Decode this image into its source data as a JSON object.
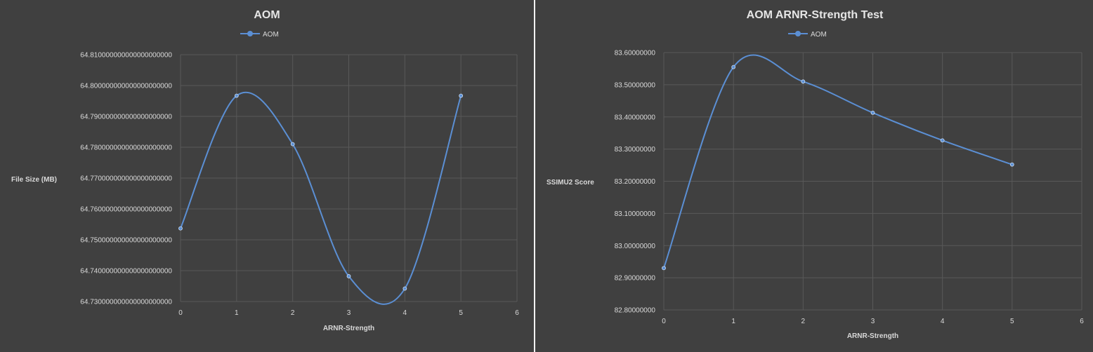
{
  "chart_data": [
    {
      "type": "line",
      "title": "AOM",
      "xlabel": "ARNR-Strength",
      "ylabel": "File Size (MB)",
      "xlim": [
        0,
        6
      ],
      "xticks": [
        "0",
        "1",
        "2",
        "3",
        "4",
        "5",
        "6"
      ],
      "ylim": [
        64.73,
        64.81
      ],
      "yticks": [
        "64.730000000000000000000",
        "64.740000000000000000000",
        "64.750000000000000000000",
        "64.760000000000000000000",
        "64.770000000000000000000",
        "64.780000000000000000000",
        "64.790000000000000000000",
        "64.800000000000000000000",
        "64.810000000000000000000"
      ],
      "grid": true,
      "legend_position": "top",
      "series": [
        {
          "name": "AOM",
          "color": "#5b8fd4",
          "x": [
            0,
            1,
            2,
            3,
            4,
            5
          ],
          "y": [
            64.7537,
            64.7967,
            64.781,
            64.7382,
            64.7342,
            64.7967
          ]
        }
      ]
    },
    {
      "type": "line",
      "title": "AOM ARNR-Strength Test",
      "xlabel": "ARNR-Strength",
      "ylabel": "SSIMU2 Score",
      "xlim": [
        0,
        6
      ],
      "xticks": [
        "0",
        "1",
        "2",
        "3",
        "4",
        "5",
        "6"
      ],
      "ylim": [
        82.8,
        83.6
      ],
      "yticks": [
        "82.80000000",
        "82.90000000",
        "83.00000000",
        "83.10000000",
        "83.20000000",
        "83.30000000",
        "83.40000000",
        "83.50000000",
        "83.60000000"
      ],
      "grid": true,
      "legend_position": "top",
      "series": [
        {
          "name": "AOM",
          "color": "#5b8fd4",
          "x": [
            0,
            1,
            2,
            3,
            4,
            5
          ],
          "y": [
            82.93,
            83.555,
            83.51,
            83.413,
            83.327,
            83.252
          ]
        }
      ]
    }
  ]
}
